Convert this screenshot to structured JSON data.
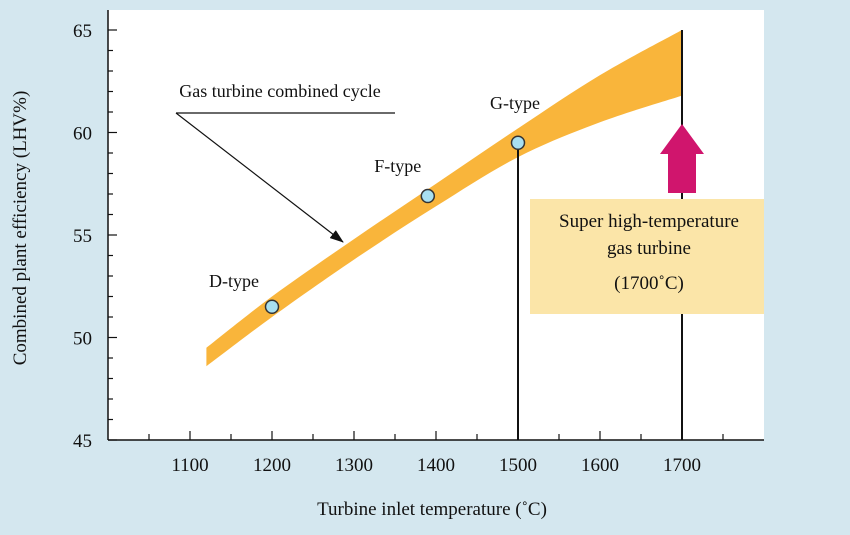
{
  "chart_data": {
    "type": "area",
    "xlabel": "Turbine inlet temperature (˚C)",
    "ylabel": "Combined plant efficiency (LHV%)",
    "xlim": [
      1000,
      1800
    ],
    "ylim": [
      45,
      65
    ],
    "x_ticks": [
      "1100",
      "1200",
      "1300",
      "1400",
      "1500",
      "1600",
      "1700"
    ],
    "y_ticks": [
      "45",
      "50",
      "55",
      "60",
      "65"
    ],
    "grid": false,
    "series": [
      {
        "name": "Gas turbine combined cycle",
        "x": [
          1120,
          1200,
          1300,
          1400,
          1500,
          1600,
          1700
        ],
        "upper": [
          49.5,
          52.0,
          54.8,
          57.5,
          60.2,
          62.8,
          65.0
        ],
        "lower": [
          48.6,
          51.0,
          53.8,
          56.4,
          58.8,
          60.5,
          61.8
        ]
      }
    ],
    "points": [
      {
        "label": "D-type",
        "x": 1200,
        "y": 51.5
      },
      {
        "label": "F-type",
        "x": 1390,
        "y": 56.9
      },
      {
        "label": "G-type",
        "x": 1500,
        "y": 59.5
      }
    ],
    "band_annotation": "Gas turbine combined cycle",
    "reference_x": 1700,
    "callout": {
      "lines": [
        "Super high-temperature",
        "gas turbine",
        "(1700˚C)"
      ]
    },
    "colors": {
      "background": "#d4e7ef",
      "plot_background": "#ffffff",
      "band": "#f9b53b",
      "point_fill": "#a8dff0",
      "arrow": "#d0156d",
      "callout_fill": "#fbe5a8"
    }
  }
}
